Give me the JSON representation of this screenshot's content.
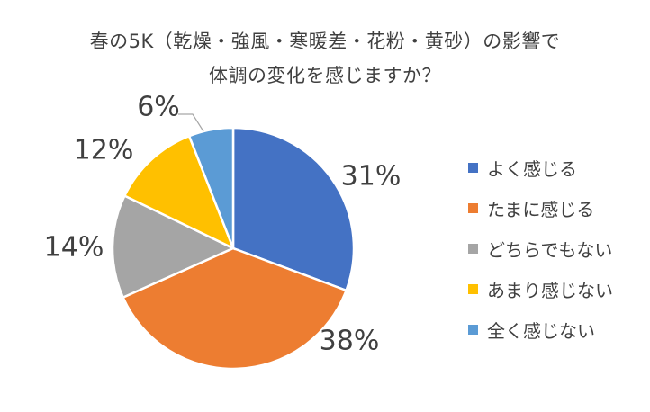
{
  "chart_data": {
    "type": "pie",
    "title_lines": [
      "春の5K（乾燥・強風・寒暖差・花粉・黄砂）の影響で",
      "体調の変化を感じますか？"
    ],
    "slices": [
      {
        "label": "よく感じる",
        "value": 31,
        "display": "31%",
        "color": "#4472C4"
      },
      {
        "label": "たまに感じる",
        "value": 38,
        "display": "38%",
        "color": "#ED7D31"
      },
      {
        "label": "どちらでもない",
        "value": 14,
        "display": "14%",
        "color": "#A5A5A5"
      },
      {
        "label": "あまり感じない",
        "value": 12,
        "display": "12%",
        "color": "#FFC000"
      },
      {
        "label": "全く感じない",
        "value": 6,
        "display": "6%",
        "color": "#5B9BD5"
      }
    ],
    "legend_position": "right"
  }
}
